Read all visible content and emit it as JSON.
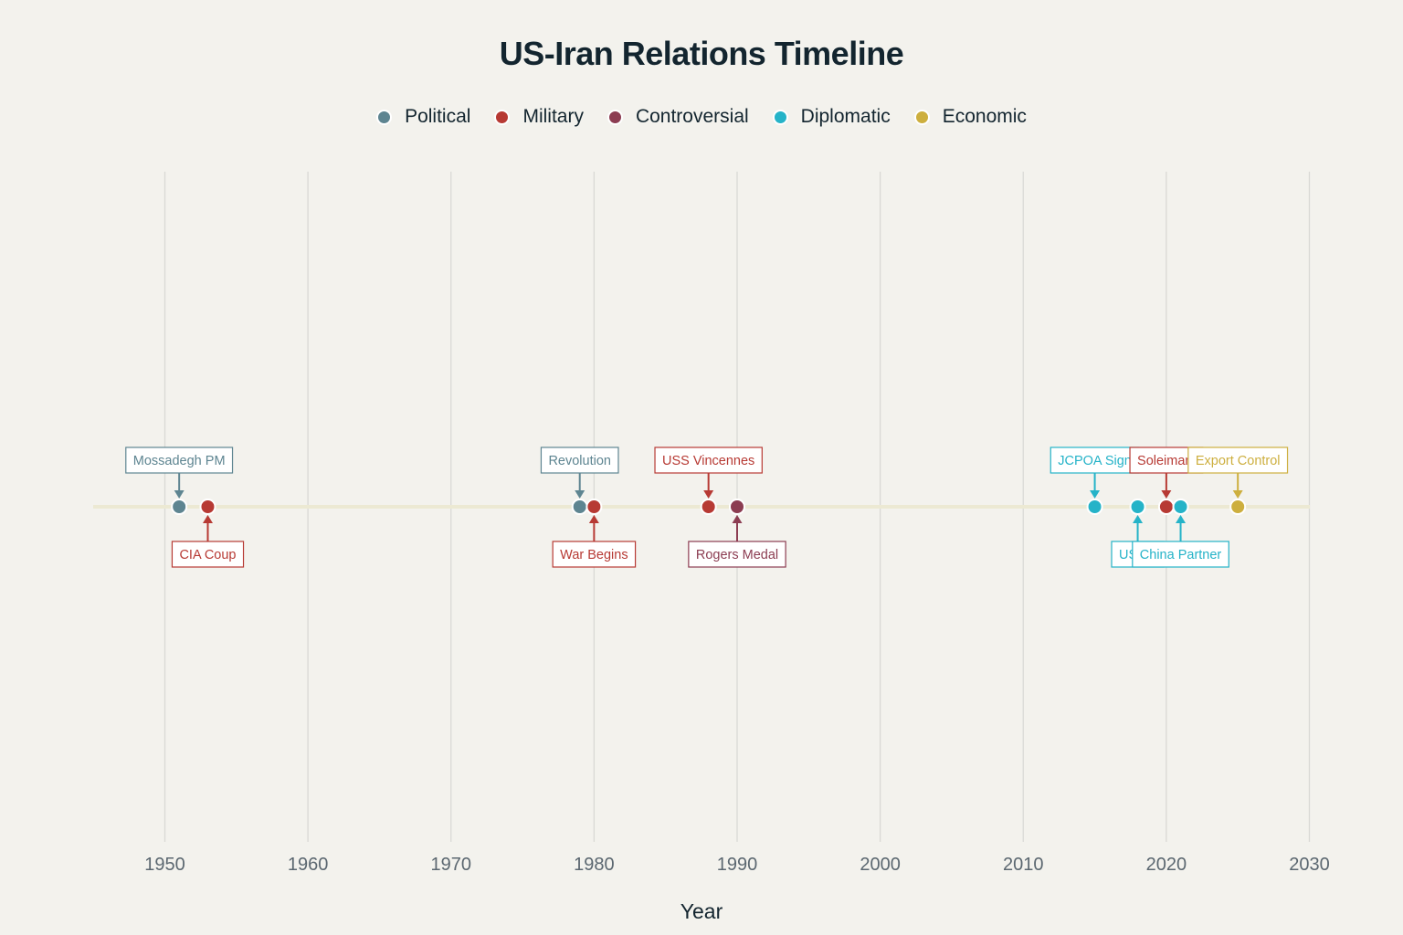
{
  "chart_data": {
    "type": "scatter",
    "title": "US-Iran Relations Timeline",
    "xlabel": "Year",
    "ylabel": "",
    "xlim": [
      1945,
      2030
    ],
    "x_ticks": [
      1950,
      1960,
      1970,
      1980,
      1990,
      2000,
      2010,
      2020,
      2030
    ],
    "grid": true,
    "legend_placement": "top-center",
    "categories": [
      {
        "name": "Political",
        "color": "#5e8591"
      },
      {
        "name": "Military",
        "color": "#b73a34"
      },
      {
        "name": "Controversial",
        "color": "#8c3d52"
      },
      {
        "name": "Diplomatic",
        "color": "#25b3c8"
      },
      {
        "name": "Economic",
        "color": "#cdaf3f"
      }
    ],
    "events": [
      {
        "year": 1951,
        "label": "Mossadegh PM",
        "category": "Political",
        "label_side": "above"
      },
      {
        "year": 1953,
        "label": "CIA Coup",
        "category": "Military",
        "label_side": "below"
      },
      {
        "year": 1979,
        "label": "Revolution",
        "category": "Political",
        "label_side": "above"
      },
      {
        "year": 1980,
        "label": "War Begins",
        "category": "Military",
        "label_side": "below"
      },
      {
        "year": 1988,
        "label": "USS Vincennes",
        "category": "Military",
        "label_side": "above"
      },
      {
        "year": 1990,
        "label": "Rogers Medal",
        "category": "Controversial",
        "label_side": "below"
      },
      {
        "year": 2015,
        "label": "JCPOA Sign",
        "category": "Diplomatic",
        "label_side": "above"
      },
      {
        "year": 2018,
        "label": "US Ex",
        "category": "Diplomatic",
        "label_side": "below"
      },
      {
        "year": 2020,
        "label": "Soleimani",
        "category": "Military",
        "label_side": "above"
      },
      {
        "year": 2021,
        "label": "China Partner",
        "category": "Diplomatic",
        "label_side": "below"
      },
      {
        "year": 2025,
        "label": "Export Control",
        "category": "Economic",
        "label_side": "above"
      }
    ]
  }
}
